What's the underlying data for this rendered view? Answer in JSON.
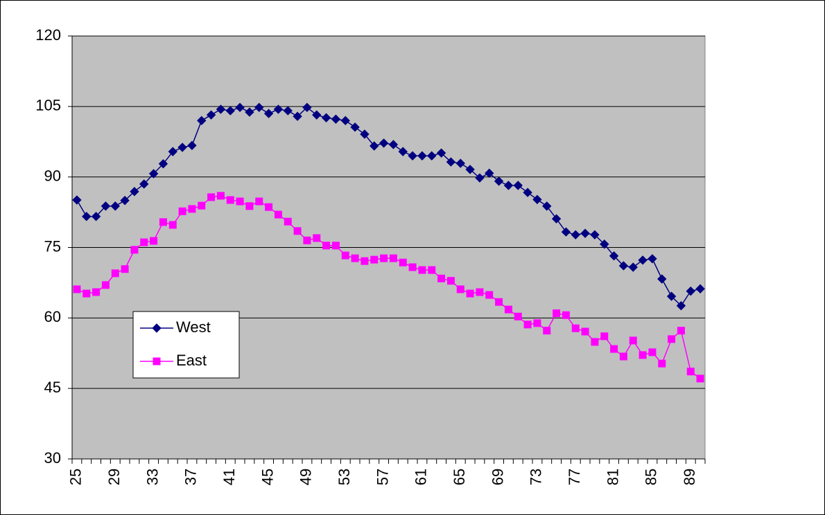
{
  "chart_data": {
    "type": "line",
    "categories": [
      "25",
      null,
      null,
      null,
      "29",
      null,
      null,
      null,
      "33",
      null,
      null,
      null,
      "37",
      null,
      null,
      null,
      "41",
      null,
      null,
      null,
      "45",
      null,
      null,
      null,
      "49",
      null,
      null,
      null,
      "53",
      null,
      null,
      null,
      "57",
      null,
      null,
      null,
      "61",
      null,
      null,
      null,
      "65",
      null,
      null,
      null,
      "69",
      null,
      null,
      null,
      "73",
      null,
      null,
      null,
      "77",
      null,
      null,
      null,
      "81",
      null,
      null,
      null,
      "85",
      null,
      null,
      null,
      "89",
      null
    ],
    "series": [
      {
        "name": "West",
        "color": "#000080",
        "marker": "diamond",
        "values": [
          85.1,
          81.6,
          81.6,
          83.8,
          83.8,
          85.0,
          86.9,
          88.5,
          90.7,
          92.8,
          95.4,
          96.3,
          96.7,
          102.0,
          103.2,
          104.4,
          104.1,
          104.8,
          103.8,
          104.8,
          103.5,
          104.4,
          104.1,
          102.9,
          104.8,
          103.2,
          102.6,
          102.3,
          102.0,
          100.6,
          99.1,
          96.6,
          97.2,
          96.9,
          95.4,
          94.5,
          94.5,
          94.5,
          95.1,
          93.2,
          92.9,
          91.6,
          89.8,
          90.8,
          89.1,
          88.2,
          88.2,
          86.7,
          85.2,
          83.8,
          81.1,
          78.3,
          77.7,
          78.0,
          77.7,
          75.7,
          73.2,
          71.1,
          70.8,
          72.3,
          72.6,
          68.3,
          64.6,
          62.6,
          65.7,
          66.2
        ]
      },
      {
        "name": "East",
        "color": "#FF00FF",
        "marker": "square",
        "values": [
          66.1,
          65.2,
          65.5,
          67.0,
          69.5,
          70.4,
          74.5,
          76.1,
          76.4,
          80.4,
          79.8,
          82.7,
          83.2,
          83.9,
          85.7,
          86.0,
          85.1,
          84.8,
          83.8,
          84.8,
          83.6,
          82.0,
          80.5,
          78.5,
          76.5,
          77.0,
          75.4,
          75.4,
          73.3,
          72.7,
          72.1,
          72.4,
          72.7,
          72.7,
          71.8,
          70.8,
          70.2,
          70.2,
          68.4,
          67.9,
          66.1,
          65.2,
          65.5,
          64.9,
          63.4,
          61.8,
          60.3,
          58.6,
          58.9,
          57.3,
          61.0,
          60.6,
          57.8,
          57.1,
          54.9,
          56.1,
          53.4,
          51.8,
          55.2,
          52.1,
          52.7,
          50.3,
          55.5,
          57.3,
          48.6,
          47.1
        ]
      }
    ],
    "ylim": [
      30,
      120
    ],
    "yticks": [
      30,
      45,
      60,
      75,
      90,
      105,
      120
    ],
    "grid": true,
    "plot_background": "#C0C0C0",
    "legend_position": "left"
  }
}
